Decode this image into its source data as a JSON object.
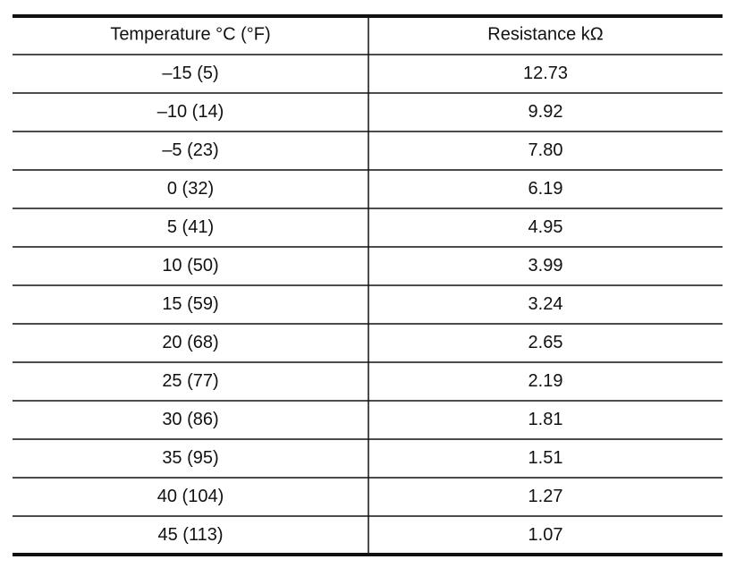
{
  "table": {
    "header": [
      "Temperature °C (°F)",
      "Resistance kΩ"
    ],
    "rows": [
      [
        "–15 (5)",
        "12.73"
      ],
      [
        "–10 (14)",
        "9.92"
      ],
      [
        "–5 (23)",
        "7.80"
      ],
      [
        "0 (32)",
        "6.19"
      ],
      [
        "5 (41)",
        "4.95"
      ],
      [
        "10 (50)",
        "3.99"
      ],
      [
        "15 (59)",
        "3.24"
      ],
      [
        "20 (68)",
        "2.65"
      ],
      [
        "25 (77)",
        "2.19"
      ],
      [
        "30 (86)",
        "1.81"
      ],
      [
        "35 (95)",
        "1.51"
      ],
      [
        "40 (104)",
        "1.27"
      ],
      [
        "45 (113)",
        "1.07"
      ]
    ]
  }
}
